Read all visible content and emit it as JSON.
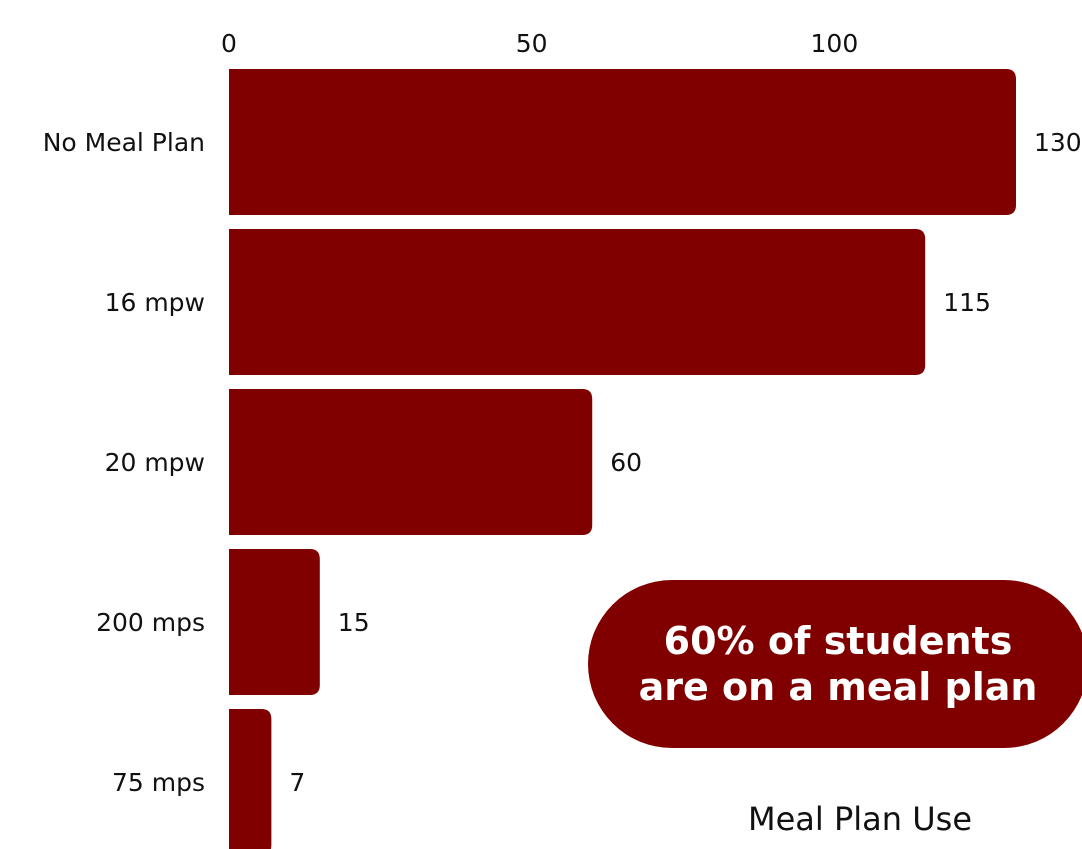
{
  "chart_data": {
    "type": "bar",
    "orientation": "horizontal",
    "title": "Meal Plan Use",
    "categories": [
      "No Meal Plan",
      "16 mpw",
      "20 mpw",
      "200 mps",
      "75 mps"
    ],
    "values": [
      130,
      115,
      60,
      15,
      7
    ],
    "xlim": [
      0,
      130
    ],
    "xticks": [
      0,
      50,
      100
    ],
    "x_axis_position": "top",
    "grid": false,
    "legend": "none",
    "data_labels": true,
    "bar_color": "#800000",
    "annotation": {
      "line1": "60% of students",
      "line2": "are on a meal plan",
      "background_color": "#800000",
      "text_color": "#ffffff"
    }
  }
}
